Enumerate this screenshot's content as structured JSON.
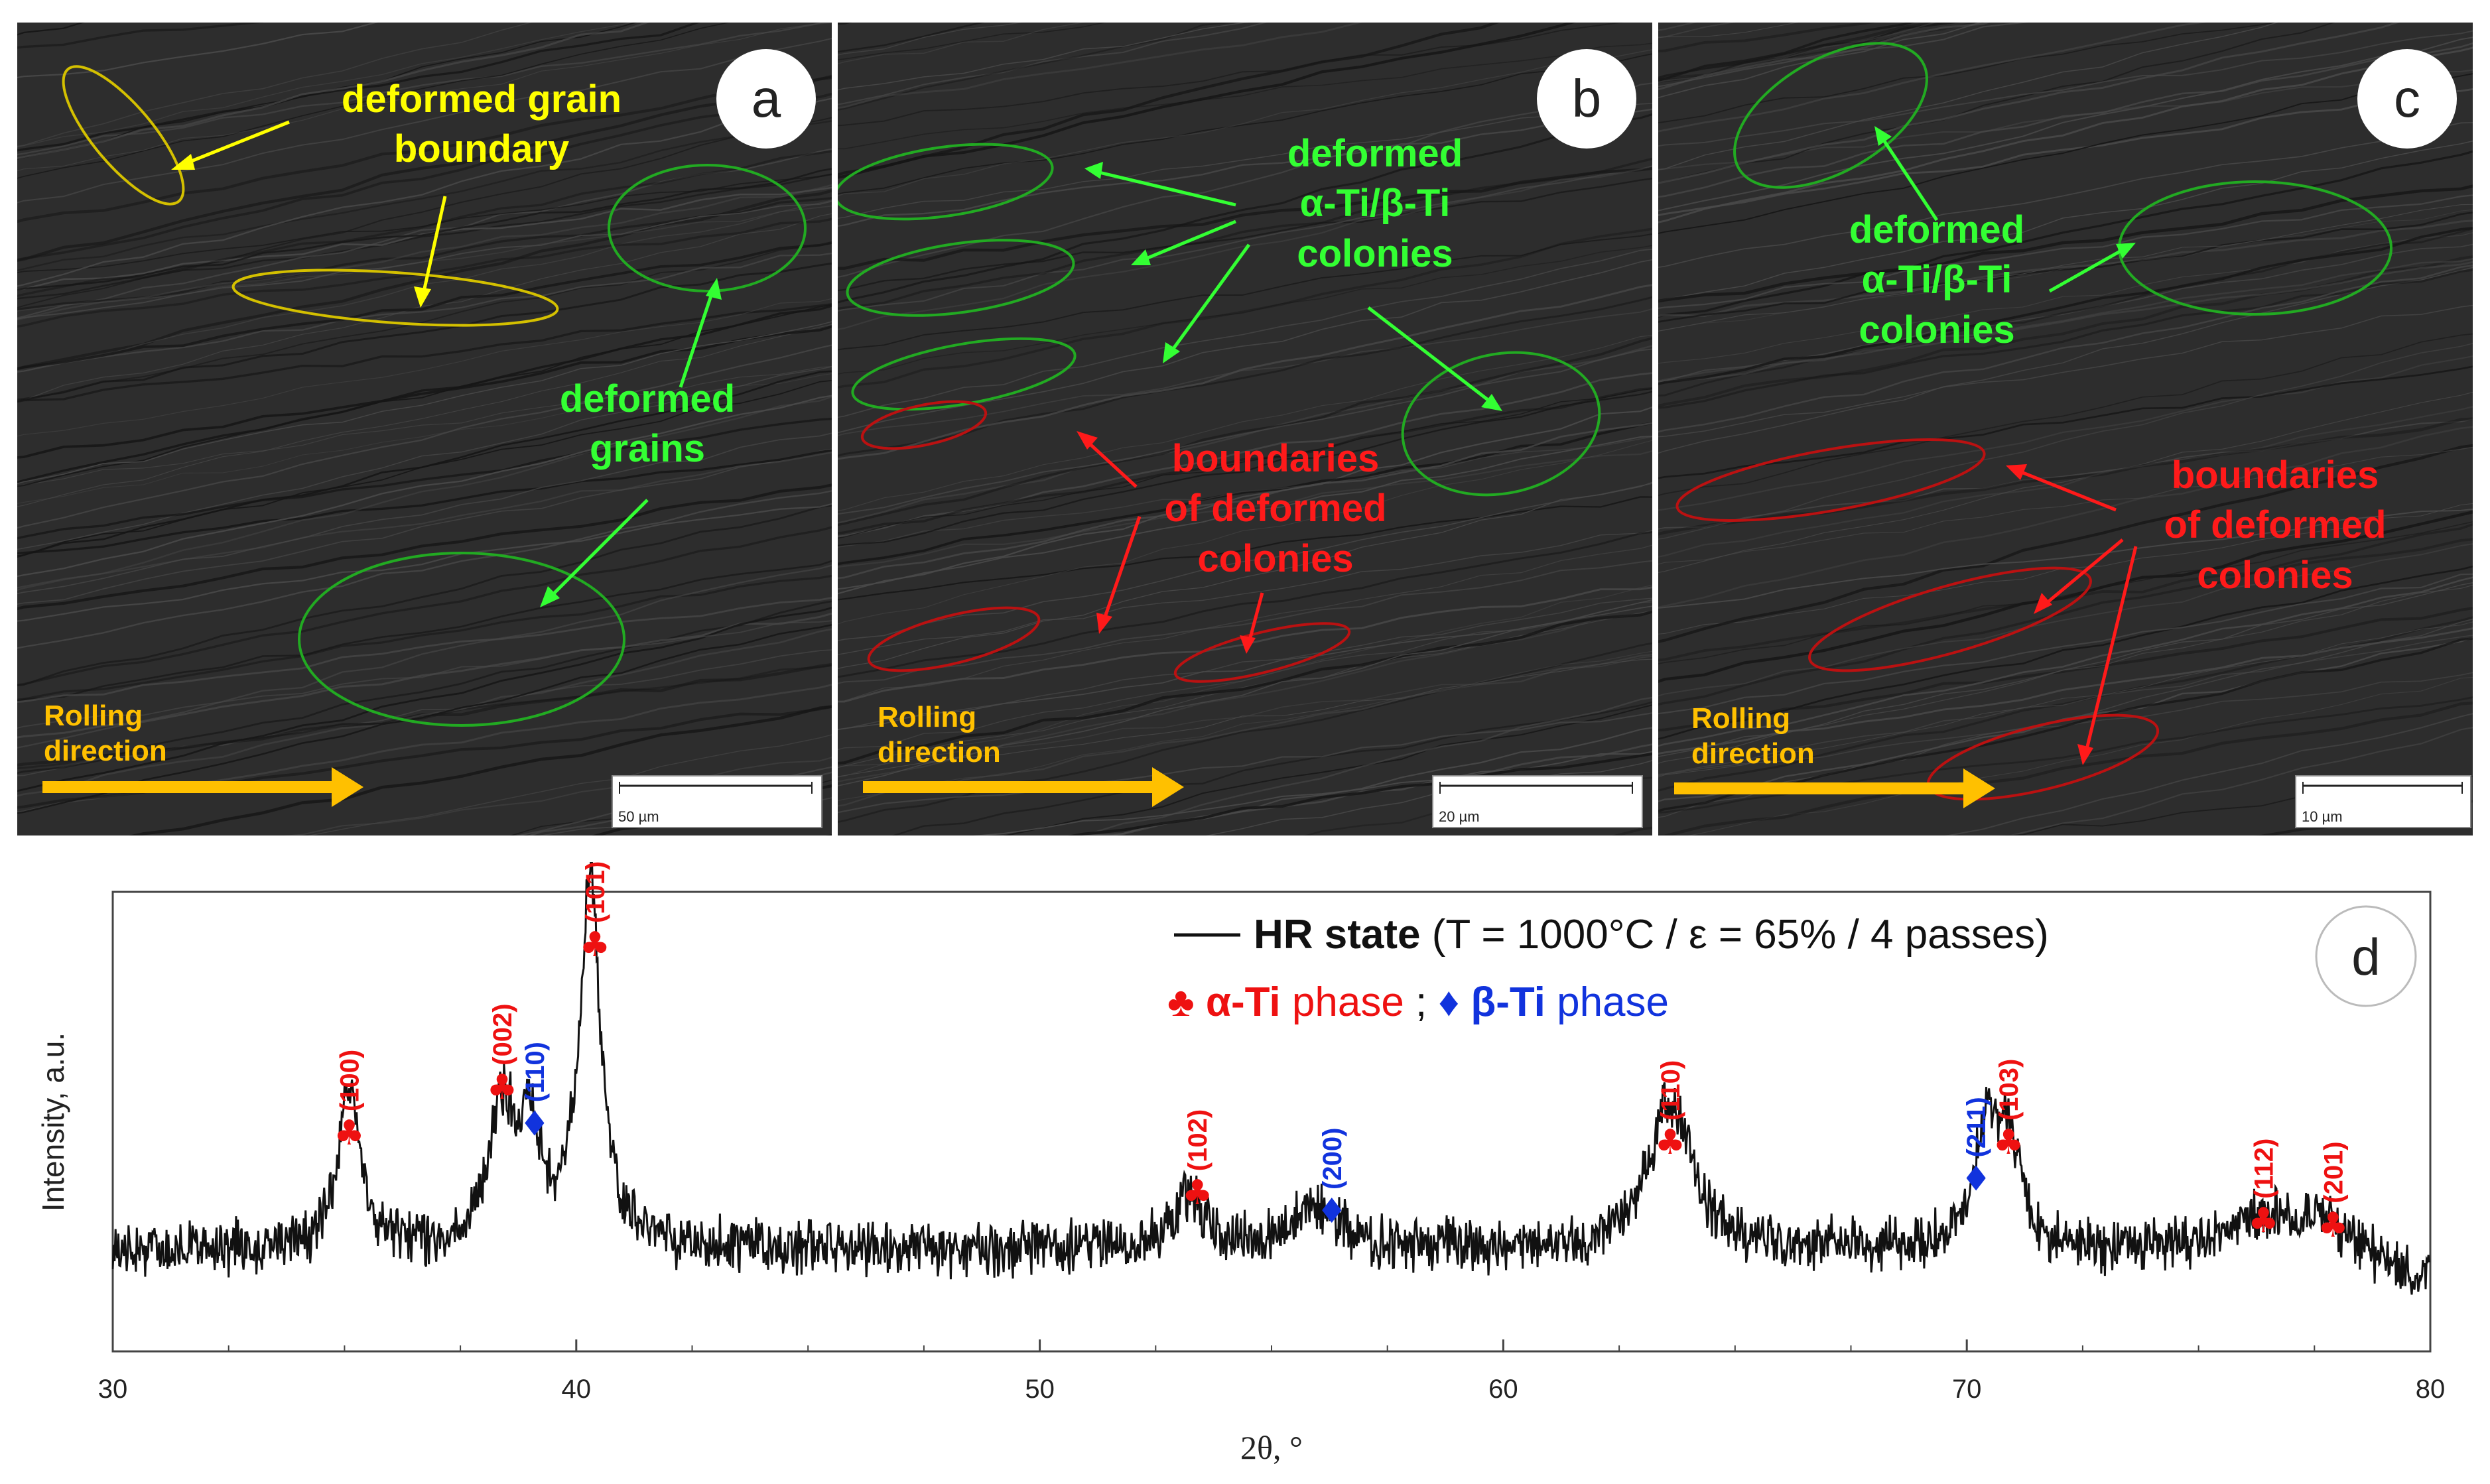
{
  "panels": [
    {
      "letter": "a",
      "rolling_line1": "Rolling",
      "rolling_line2": "direction",
      "scale": "50 µm",
      "labels": {
        "yellow_line1": "deformed grain",
        "yellow_line2": "boundary",
        "green_line1": "deformed",
        "green_line2": "grains"
      }
    },
    {
      "letter": "b",
      "rolling_line1": "Rolling",
      "rolling_line2": "direction",
      "scale": "20 µm",
      "labels": {
        "green_line1": "deformed",
        "green_line2": "α-Ti/β-Ti",
        "green_line3": "colonies",
        "red_line1": "boundaries",
        "red_line2": "of deformed",
        "red_line3": "colonies"
      }
    },
    {
      "letter": "c",
      "rolling_line1": "Rolling",
      "rolling_line2": "direction",
      "scale": "10 µm",
      "labels": {
        "green_line1": "deformed",
        "green_line2": "α-Ti/β-Ti",
        "green_line3": "colonies",
        "red_line1": "boundaries",
        "red_line2": "of deformed",
        "red_line3": "colonies"
      }
    }
  ],
  "chart_data": {
    "type": "line",
    "panel_letter": "d",
    "xlabel": "2θ, °",
    "ylabel": "Intensity, a.u.",
    "xlim": [
      30,
      80
    ],
    "xticks": [
      30,
      40,
      50,
      60,
      70,
      80
    ],
    "ylim": [
      0,
      100
    ],
    "legend": {
      "series_name_bold": "HR state",
      "series_conditions": " (T = 1000°C / ε = 65% / 4 passes)",
      "alpha_name": "α-Ti",
      "alpha_word": " phase",
      "separator": " ; ",
      "beta_name": "β-Ti",
      "beta_word": " phase"
    },
    "colors": {
      "alpha": "#ee1111",
      "beta": "#1133dd",
      "line": "#111111"
    },
    "series": [
      {
        "name": "HR state",
        "baseline": 22,
        "peaks": [
          {
            "x": 35.1,
            "height": 35,
            "width": 0.28
          },
          {
            "x": 38.4,
            "height": 30,
            "width": 0.35
          },
          {
            "x": 39.0,
            "height": 25,
            "width": 0.25
          },
          {
            "x": 40.3,
            "height": 80,
            "width": 0.28
          },
          {
            "x": 53.2,
            "height": 12,
            "width": 0.4
          },
          {
            "x": 56.0,
            "height": 9,
            "width": 0.6
          },
          {
            "x": 63.6,
            "height": 33,
            "width": 0.55
          },
          {
            "x": 70.4,
            "height": 24,
            "width": 0.3
          },
          {
            "x": 70.9,
            "height": 24,
            "width": 0.3
          },
          {
            "x": 76.5,
            "height": 8,
            "width": 0.7
          },
          {
            "x": 77.7,
            "height": 6,
            "width": 0.5
          }
        ]
      }
    ],
    "annotations": [
      {
        "phase": "alpha",
        "label": "(100)",
        "x": 35.1,
        "y": 45
      },
      {
        "phase": "alpha",
        "label": "(002)",
        "x": 38.4,
        "y": 55
      },
      {
        "phase": "beta",
        "label": "(110)",
        "x": 39.1,
        "y": 47
      },
      {
        "phase": "alpha",
        "label": "(101)",
        "x": 40.4,
        "y": 86
      },
      {
        "phase": "alpha",
        "label": "(102)",
        "x": 53.4,
        "y": 32
      },
      {
        "phase": "beta",
        "label": "(200)",
        "x": 56.3,
        "y": 28
      },
      {
        "phase": "alpha",
        "label": "(110)",
        "x": 63.6,
        "y": 43
      },
      {
        "phase": "beta",
        "label": "(211)",
        "x": 70.2,
        "y": 35
      },
      {
        "phase": "alpha",
        "label": "(103)",
        "x": 70.9,
        "y": 43
      },
      {
        "phase": "alpha",
        "label": "(112)",
        "x": 76.4,
        "y": 26
      },
      {
        "phase": "alpha",
        "label": "(201)",
        "x": 77.9,
        "y": 25
      }
    ]
  }
}
